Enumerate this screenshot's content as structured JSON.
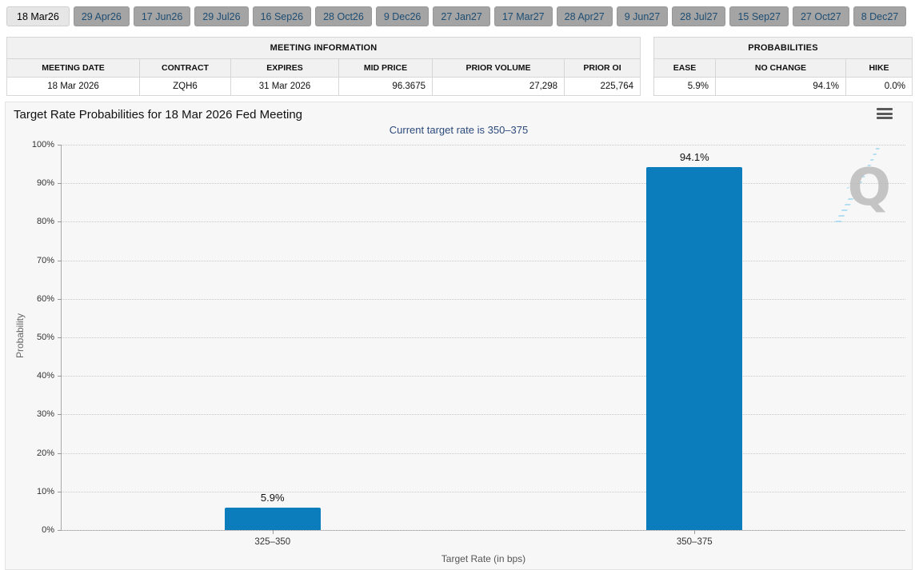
{
  "tabs": [
    {
      "label": "18 Mar26",
      "active": true
    },
    {
      "label": "29 Apr26",
      "active": false
    },
    {
      "label": "17 Jun26",
      "active": false
    },
    {
      "label": "29 Jul26",
      "active": false
    },
    {
      "label": "16 Sep26",
      "active": false
    },
    {
      "label": "28 Oct26",
      "active": false
    },
    {
      "label": "9 Dec26",
      "active": false
    },
    {
      "label": "27 Jan27",
      "active": false
    },
    {
      "label": "17 Mar27",
      "active": false
    },
    {
      "label": "28 Apr27",
      "active": false
    },
    {
      "label": "9 Jun27",
      "active": false
    },
    {
      "label": "28 Jul27",
      "active": false
    },
    {
      "label": "15 Sep27",
      "active": false
    },
    {
      "label": "27 Oct27",
      "active": false
    },
    {
      "label": "8 Dec27",
      "active": false
    }
  ],
  "meeting_info": {
    "title": "MEETING INFORMATION",
    "columns": [
      "MEETING DATE",
      "CONTRACT",
      "EXPIRES",
      "MID PRICE",
      "PRIOR VOLUME",
      "PRIOR OI"
    ],
    "row": [
      "18 Mar 2026",
      "ZQH6",
      "31 Mar 2026",
      "96.3675",
      "27,298",
      "225,764"
    ]
  },
  "probabilities": {
    "title": "PROBABILITIES",
    "columns": [
      "EASE",
      "NO CHANGE",
      "HIKE"
    ],
    "row": [
      "5.9%",
      "94.1%",
      "0.0%"
    ]
  },
  "chart_header": {
    "title": "Target Rate Probabilities for 18 Mar 2026 Fed Meeting",
    "subtitle": "Current target rate is 350–375",
    "menu_icon": "hamburger-menu"
  },
  "watermark_letter": "Q",
  "chart_data": {
    "type": "bar",
    "title": "Target Rate Probabilities for 18 Mar 2026 Fed Meeting",
    "subtitle": "Current target rate is 350–375",
    "categories": [
      "325–350",
      "350–375"
    ],
    "values": [
      5.9,
      94.1
    ],
    "bar_labels": [
      "5.9%",
      "94.1%"
    ],
    "xlabel": "Target Rate (in bps)",
    "ylabel": "Probability",
    "yticks": [
      "0%",
      "10%",
      "20%",
      "30%",
      "40%",
      "50%",
      "60%",
      "70%",
      "80%",
      "90%",
      "100%"
    ],
    "ylim": [
      0,
      100
    ],
    "grid": "horizontal-dotted",
    "legend": "none",
    "bar_color": "#0b7cbc"
  }
}
